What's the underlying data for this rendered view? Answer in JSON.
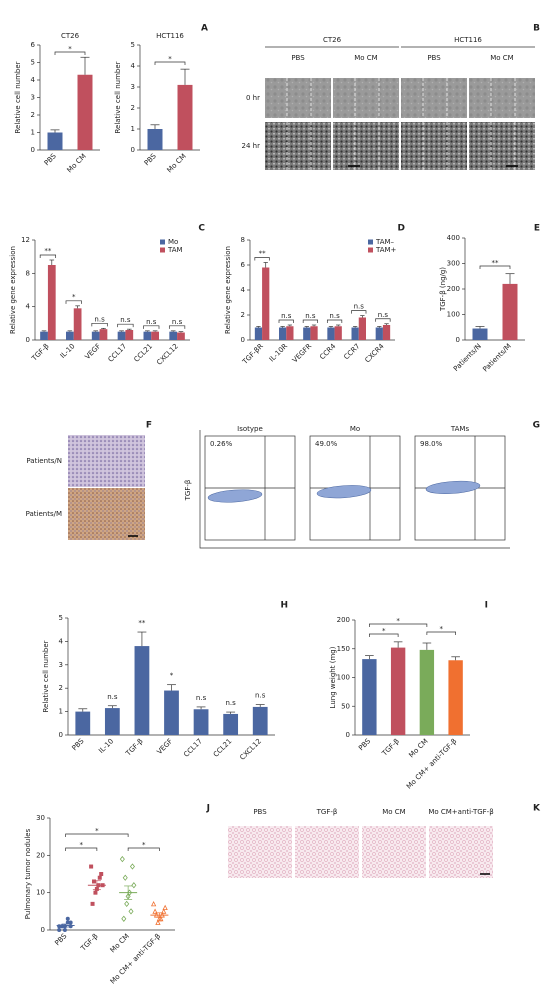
{
  "chart_data": [
    {
      "type": "bar",
      "panel": "A",
      "title": "CT26",
      "y_label": "Relative cell number",
      "categories": [
        "PBS",
        "Mo CM"
      ],
      "values": [
        1.0,
        4.3
      ],
      "errors": [
        0.15,
        1.0
      ],
      "colors": [
        "#4b67a1",
        "#c0505e"
      ],
      "ylim": [
        0,
        6
      ],
      "yticks": [
        0,
        1,
        2,
        3,
        4,
        5,
        6
      ],
      "comparisons": [
        "*"
      ]
    },
    {
      "type": "bar",
      "title": "HCT116",
      "y_label": "Relative cell number",
      "categories": [
        "PBS",
        "Mo CM"
      ],
      "values": [
        1.0,
        3.1
      ],
      "errors": [
        0.2,
        0.75
      ],
      "colors": [
        "#4b67a1",
        "#c0505e"
      ],
      "ylim": [
        0,
        5
      ],
      "yticks": [
        0,
        1,
        2,
        3,
        4,
        5
      ],
      "comparisons": [
        "*"
      ]
    },
    {
      "type": "bar",
      "panel": "C",
      "y_label": "Relative gene expression",
      "categories": [
        "TGF-β",
        "IL-10",
        "VEGF",
        "CCL17",
        "CCL21",
        "CXCL12"
      ],
      "series": [
        {
          "name": "Mo",
          "color": "#4b67a1",
          "values": [
            1,
            1,
            1,
            1,
            1,
            1
          ],
          "errors": [
            0.1,
            0.1,
            0.1,
            0.1,
            0.1,
            0.1
          ]
        },
        {
          "name": "TAM",
          "color": "#c0505e",
          "values": [
            9.0,
            3.8,
            1.3,
            1.2,
            1.0,
            0.9
          ],
          "errors": [
            0.6,
            0.3,
            0.1,
            0.1,
            0.1,
            0.1
          ]
        }
      ],
      "ylim": [
        0,
        12
      ],
      "yticks": [
        0,
        4,
        8,
        12
      ],
      "significance": [
        "**",
        "*",
        "n.s",
        "n.s",
        "n.s",
        "n.s"
      ]
    },
    {
      "type": "bar",
      "panel": "D",
      "y_label": "Relative gene expression",
      "categories": [
        "TGF-βR",
        "IL-10R",
        "VEGFR",
        "CCR4",
        "CCR7",
        "CXCR4"
      ],
      "series": [
        {
          "name": "TAM–",
          "color": "#4b67a1",
          "values": [
            1,
            1,
            1,
            1,
            1,
            1
          ],
          "errors": [
            0.08,
            0.08,
            0.08,
            0.08,
            0.08,
            0.08
          ]
        },
        {
          "name": "TAM+",
          "color": "#c0505e",
          "values": [
            5.8,
            1.1,
            1.1,
            1.1,
            1.8,
            1.2
          ],
          "errors": [
            0.4,
            0.1,
            0.1,
            0.1,
            0.15,
            0.1
          ]
        }
      ],
      "ylim": [
        0,
        8
      ],
      "yticks": [
        0,
        2,
        4,
        6,
        8
      ],
      "significance": [
        "**",
        "n.s",
        "n.s",
        "n.s",
        "n.s",
        "n.s"
      ]
    },
    {
      "type": "bar",
      "panel": "E",
      "y_label": "TGF-β (ng/g)",
      "categories": [
        "Patients/N",
        "Patients/M"
      ],
      "values": [
        45,
        220
      ],
      "errors": [
        8,
        40
      ],
      "colors": [
        "#4b67a1",
        "#c0505e"
      ],
      "ylim": [
        0,
        400
      ],
      "yticks": [
        0,
        100,
        200,
        300,
        400
      ],
      "comparisons": [
        "**"
      ]
    },
    {
      "type": "bar",
      "panel": "H",
      "y_label": "Relative cell number",
      "categories": [
        "PBS",
        "IL-10",
        "TGF-β",
        "VEGF",
        "CCL17",
        "CCL21",
        "CXCL12"
      ],
      "values": [
        1.0,
        1.15,
        3.8,
        1.9,
        1.1,
        0.9,
        1.2
      ],
      "errors": [
        0.12,
        0.1,
        0.6,
        0.25,
        0.1,
        0.08,
        0.1
      ],
      "color": "#4b67a1",
      "ylim": [
        0,
        5
      ],
      "yticks": [
        0,
        1,
        2,
        3,
        4,
        5
      ],
      "significance": [
        null,
        "n.s",
        "**",
        "*",
        "n.s",
        "n.s",
        "n.s"
      ]
    },
    {
      "type": "bar",
      "panel": "I",
      "y_label": "Lung weight (mg)",
      "categories": [
        "PBS",
        "TGF-β",
        "Mo CM",
        "Mo CM+ anti-TGF-β"
      ],
      "values": [
        132,
        152,
        148,
        130
      ],
      "errors": [
        6,
        10,
        12,
        6
      ],
      "colors": [
        "#4b67a1",
        "#c0505e",
        "#7aab5a",
        "#f07030"
      ],
      "ylim": [
        0,
        200
      ],
      "yticks": [
        0,
        50,
        100,
        150,
        200
      ],
      "comparisons": [
        "*",
        "*",
        "*"
      ]
    },
    {
      "type": "dotplot",
      "panel": "J",
      "y_label": "Pulmonary tumor nodules",
      "categories": [
        "PBS",
        "TGF-β",
        "Mo CM",
        "Mo CM+ anti-TGF-β"
      ],
      "groups": [
        [
          0,
          1,
          1,
          2,
          1,
          0,
          3,
          1,
          2,
          1
        ],
        [
          17,
          15,
          13,
          12,
          11,
          10,
          14,
          7,
          12
        ],
        [
          19,
          17,
          14,
          10,
          9,
          7,
          5,
          3,
          12
        ],
        [
          7,
          5,
          4,
          3,
          3,
          2,
          4,
          5,
          6
        ]
      ],
      "means": [
        1.2,
        12,
        10,
        4
      ],
      "errors": [
        0.4,
        1.2,
        1.8,
        0.6
      ],
      "colors": [
        "#4b67a1",
        "#c0505e",
        "#7aab5a",
        "#f07030"
      ],
      "markers": [
        "circle",
        "square",
        "diamond",
        "triangle"
      ],
      "ylim": [
        0,
        30
      ],
      "yticks": [
        0,
        10,
        20,
        30
      ],
      "comparisons": [
        "*",
        "*",
        "*"
      ]
    }
  ],
  "panels": {
    "B": {
      "letter": "B",
      "groups": [
        "CT26",
        "HCT116"
      ],
      "columns": [
        "PBS",
        "Mo CM",
        "PBS",
        "Mo CM"
      ],
      "rows": [
        "0 hr",
        "24 hr"
      ]
    },
    "F": {
      "letter": "F",
      "rows": [
        "Patients/N",
        "Patients/M"
      ]
    },
    "G": {
      "letter": "G",
      "axis_label": "TGF-β",
      "plots": [
        {
          "title": "Isotype",
          "percent": "0.26%"
        },
        {
          "title": "Mo",
          "percent": "49.0%"
        },
        {
          "title": "TAMs",
          "percent": "98.0%"
        }
      ]
    },
    "K": {
      "letter": "K",
      "columns": [
        "PBS",
        "TGF-β",
        "Mo CM",
        "Mo CM+anti-TGF-β"
      ]
    }
  }
}
